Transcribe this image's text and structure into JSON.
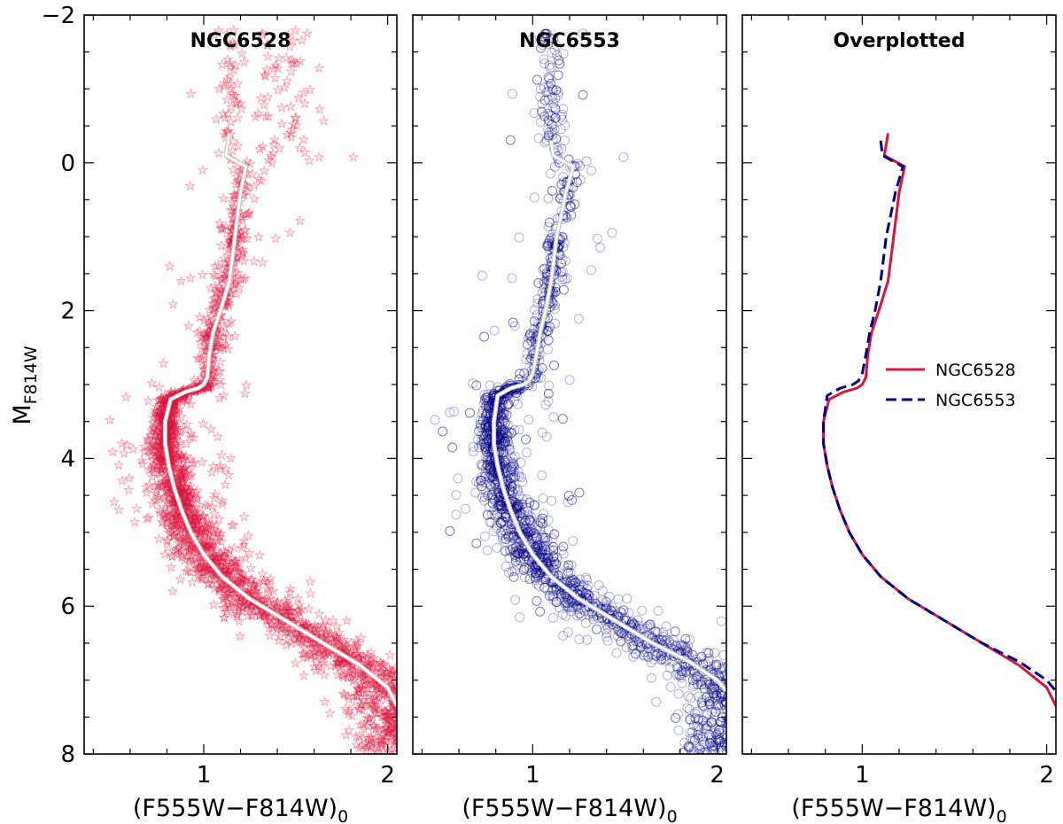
{
  "figure": {
    "ylabel_main": "M",
    "ylabel_sub": "F814W",
    "xlabel_main": "(F555W−F814W)",
    "xlabel_sub": "0"
  },
  "colors": {
    "ngc6528": "#dc143c",
    "ngc6553": "#000080",
    "fiducial": "#ffffff",
    "fiducial_edge": "#c8c8c8"
  },
  "chart_data": [
    {
      "type": "scatter",
      "title": "NGC6528",
      "xlabel": "(F555W−F814W)0",
      "ylabel": "MF814W",
      "xlim": [
        0.35,
        2.05
      ],
      "ylim": [
        8,
        -2
      ],
      "inverted_y": true,
      "x_ticks": [
        1,
        2
      ],
      "x_tick_labels": [
        "1",
        "2"
      ],
      "y_ticks": [
        -2,
        0,
        2,
        4,
        6,
        8
      ],
      "y_tick_labels": [
        "−2",
        "0",
        "2",
        "4",
        "6",
        "8"
      ],
      "marker": "star",
      "points_note": "dense red-star CMD scatter following the fiducial sequence",
      "fiducial": {
        "color": [
          1.14,
          1.12,
          1.23,
          1.2,
          1.17,
          1.14,
          1.09,
          1.05,
          1.03,
          1.02,
          1.0,
          0.97,
          0.9,
          0.82,
          0.79,
          0.79,
          0.81,
          0.84,
          0.88,
          0.93,
          1.0,
          1.1,
          1.25,
          1.45,
          1.65,
          1.85,
          2.0,
          2.05
        ],
        "mag": [
          -0.4,
          -0.1,
          0.05,
          0.4,
          1.0,
          1.6,
          2.0,
          2.3,
          2.6,
          2.9,
          3.0,
          3.05,
          3.1,
          3.2,
          3.5,
          3.8,
          4.1,
          4.4,
          4.7,
          5.0,
          5.3,
          5.6,
          5.9,
          6.2,
          6.5,
          6.8,
          7.1,
          7.35
        ]
      }
    },
    {
      "type": "scatter",
      "title": "NGC6553",
      "xlabel": "(F555W−F814W)0",
      "ylabel": "MF814W",
      "xlim": [
        0.35,
        2.05
      ],
      "ylim": [
        8,
        -2
      ],
      "inverted_y": true,
      "x_ticks": [
        1,
        2
      ],
      "x_tick_labels": [
        "1",
        "2"
      ],
      "marker": "open-circle",
      "points_note": "dense navy open-circle CMD scatter following the fiducial sequence",
      "fiducial": {
        "color": [
          1.1,
          1.11,
          1.22,
          1.18,
          1.13,
          1.1,
          1.07,
          1.04,
          1.02,
          1.0,
          0.98,
          0.95,
          0.88,
          0.81,
          0.79,
          0.79,
          0.81,
          0.84,
          0.88,
          0.93,
          1.0,
          1.1,
          1.25,
          1.45,
          1.65,
          1.85,
          2.0,
          2.05
        ],
        "mag": [
          -0.3,
          -0.1,
          0.05,
          0.4,
          1.0,
          1.6,
          2.0,
          2.3,
          2.6,
          2.85,
          2.95,
          3.0,
          3.05,
          3.15,
          3.5,
          3.8,
          4.1,
          4.4,
          4.7,
          5.0,
          5.3,
          5.6,
          5.9,
          6.2,
          6.5,
          6.75,
          7.0,
          7.15
        ]
      }
    },
    {
      "type": "line",
      "title": "Overplotted",
      "xlabel": "(F555W−F814W)0",
      "xlim": [
        0.35,
        2.05
      ],
      "ylim": [
        8,
        -2
      ],
      "inverted_y": true,
      "x_ticks": [
        1,
        2
      ],
      "x_tick_labels": [
        "1",
        "2"
      ],
      "legend": {
        "placement": "center-right",
        "entries": [
          "NGC6528",
          "NGC6553"
        ]
      },
      "series": [
        {
          "name": "NGC6528",
          "style": "solid",
          "ref": "fiducial-0"
        },
        {
          "name": "NGC6553",
          "style": "dashed",
          "ref": "fiducial-1"
        }
      ]
    }
  ]
}
